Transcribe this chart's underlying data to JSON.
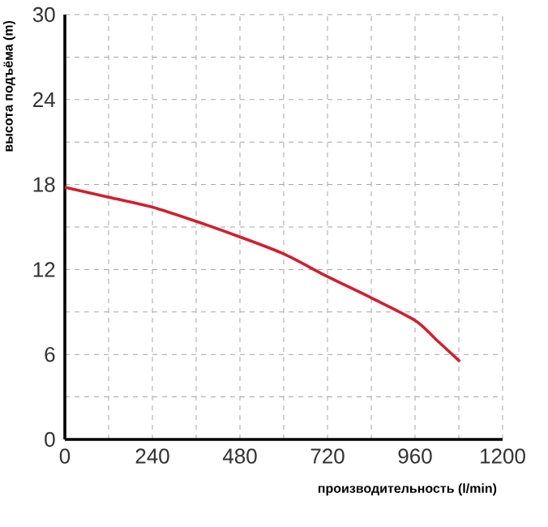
{
  "chart_data": {
    "type": "line",
    "xlabel": "производительность (l/min)",
    "ylabel": "высота подъёма (m)",
    "x": [
      0,
      120,
      240,
      360,
      480,
      600,
      720,
      840,
      960,
      1020,
      1083
    ],
    "series": [
      {
        "color": "#d0202e",
        "values": [
          17.8,
          17.1,
          16.4,
          15.4,
          14.3,
          13.1,
          11.5,
          10.0,
          8.4,
          7.0,
          5.5
        ]
      }
    ],
    "xlim": [
      0,
      1200
    ],
    "ylim": [
      0,
      30
    ],
    "xticks": [
      0,
      {
        "value": 120,
        "label": null
      },
      240,
      {
        "value": 360,
        "label": null
      },
      480,
      {
        "value": 600,
        "label": null
      },
      720,
      {
        "value": 840,
        "label": null
      },
      960,
      {
        "value": 1080,
        "label": null
      },
      1200
    ],
    "yticks": [
      0,
      {
        "value": 3,
        "label": null
      },
      6,
      {
        "value": 9,
        "label": null
      },
      12,
      {
        "value": 15,
        "label": null
      },
      18,
      {
        "value": 21,
        "label": null
      },
      24,
      {
        "value": 27,
        "label": null
      },
      30
    ],
    "grid": true,
    "marker": "none",
    "line_style": "solid"
  }
}
